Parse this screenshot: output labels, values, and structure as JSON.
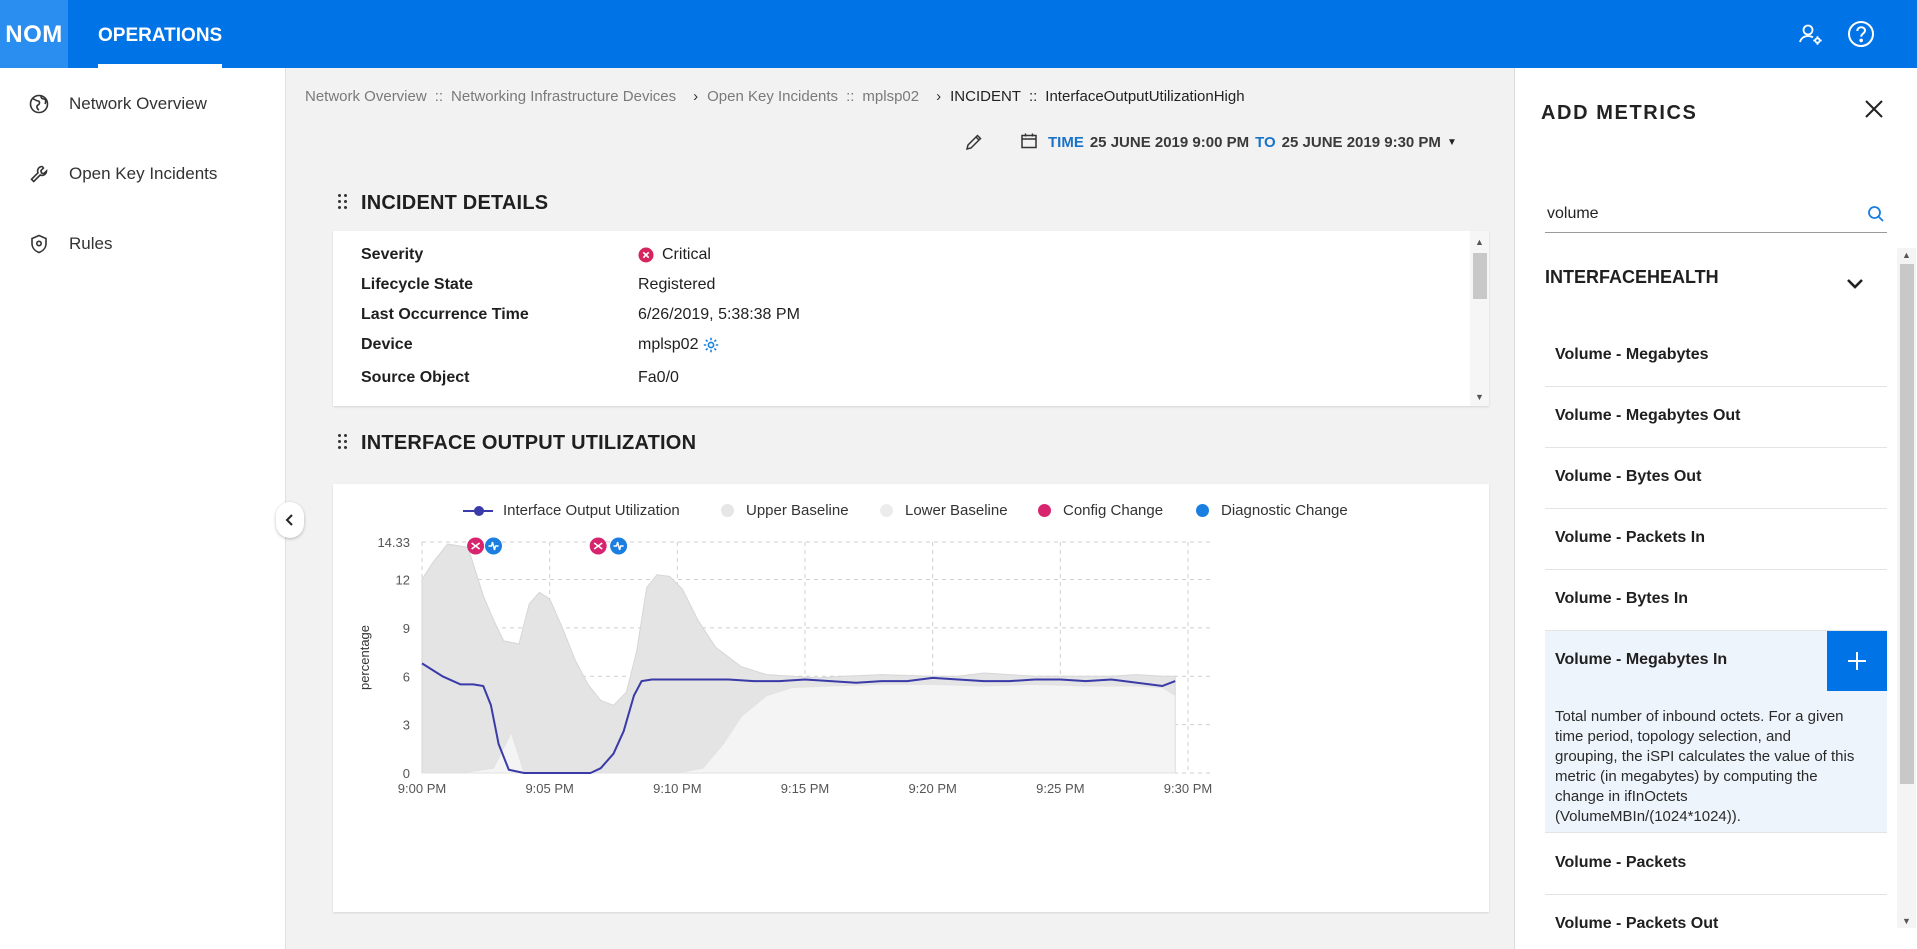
{
  "header": {
    "logo": "NOM",
    "tab": "OPERATIONS"
  },
  "sidebar": {
    "items": [
      {
        "label": "Network Overview",
        "icon": "globe-icon"
      },
      {
        "label": "Open Key Incidents",
        "icon": "wrench-icon"
      },
      {
        "label": "Rules",
        "icon": "shield-icon"
      }
    ]
  },
  "breadcrumb": {
    "items": [
      "Network Overview",
      "Networking Infrastructure Devices",
      "Open Key Incidents",
      "mplsp02"
    ],
    "separator": "::",
    "current_prefix": "INCIDENT",
    "current": "InterfaceOutputUtilizationHigh"
  },
  "timerange": {
    "time_label": "TIME",
    "from": "25 JUNE 2019 9:00 PM",
    "to_label": "TO",
    "to": "25 JUNE 2019 9:30 PM"
  },
  "incident_details": {
    "title": "INCIDENT DETAILS",
    "rows": [
      {
        "key": "Severity",
        "value": "Critical"
      },
      {
        "key": "Lifecycle State",
        "value": "Registered"
      },
      {
        "key": "Last Occurrence Time",
        "value": "6/26/2019, 5:38:38 PM"
      },
      {
        "key": "Device",
        "value": "mplsp02"
      },
      {
        "key": "Source Object",
        "value": "Fa0/0"
      }
    ],
    "severity_color": "#d6245e"
  },
  "chart_section": {
    "title": "INTERFACE OUTPUT UTILIZATION"
  },
  "chart_data": {
    "type": "line",
    "ylabel": "percentage",
    "xlabel": "",
    "ylim": [
      0,
      14.33
    ],
    "yticks": [
      "14.33",
      "12",
      "9",
      "6",
      "3",
      "0"
    ],
    "xticks": [
      "9:00 PM",
      "9:05 PM",
      "9:10 PM",
      "9:15 PM",
      "9:20 PM",
      "9:25 PM",
      "9:30 PM"
    ],
    "legend": [
      {
        "name": "Interface Output Utilization",
        "color": "#3a3aa8"
      },
      {
        "name": "Upper Baseline",
        "color": "#e6e6e6"
      },
      {
        "name": "Lower Baseline",
        "color": "#ececec"
      },
      {
        "name": "Config Change",
        "color": "#d6246e"
      },
      {
        "name": "Diagnostic Change",
        "color": "#1a7fe0"
      }
    ],
    "series": [
      {
        "name": "Interface Output Utilization",
        "x_minutes": [
          0,
          0.8,
          1.5,
          2.0,
          2.4,
          2.7,
          3.0,
          3.4,
          4.0,
          5.0,
          6.0,
          6.6,
          7.0,
          7.5,
          7.9,
          8.3,
          8.6,
          9.0,
          10,
          11,
          12,
          13,
          14,
          15,
          16,
          17,
          18,
          19,
          20,
          21,
          22,
          23,
          24,
          25,
          26,
          27,
          28,
          29,
          29.5
        ],
        "values": [
          6.8,
          6.0,
          5.5,
          5.5,
          5.4,
          4.2,
          1.8,
          0.2,
          0.0,
          0.0,
          0.0,
          0.0,
          0.3,
          1.2,
          2.6,
          4.8,
          5.7,
          5.8,
          5.8,
          5.8,
          5.8,
          5.7,
          5.7,
          5.8,
          5.7,
          5.6,
          5.7,
          5.7,
          5.9,
          5.8,
          5.7,
          5.7,
          5.8,
          5.8,
          5.7,
          5.8,
          5.6,
          5.4,
          5.7
        ]
      },
      {
        "name": "Upper Baseline",
        "x_minutes": [
          0,
          0.4,
          1.0,
          1.8,
          2.4,
          2.8,
          3.2,
          3.8,
          4.2,
          4.6,
          5.0,
          5.5,
          6.0,
          6.5,
          7.0,
          7.5,
          8.0,
          8.4,
          8.8,
          9.2,
          9.7,
          10.2,
          10.8,
          11.5,
          12.5,
          13.5,
          14.5,
          15.5,
          16.5,
          18,
          20,
          21,
          22,
          23,
          24,
          25,
          26,
          27,
          28,
          29,
          29.5
        ],
        "values": [
          12,
          13.0,
          14.2,
          14.0,
          11.0,
          9.5,
          8.2,
          8.0,
          10.5,
          11.2,
          10.8,
          9.0,
          7.0,
          5.5,
          4.5,
          4.2,
          5.0,
          7.5,
          11.5,
          12.3,
          12.2,
          11.4,
          9.5,
          7.8,
          6.6,
          6.1,
          6.0,
          5.9,
          6.0,
          6.1,
          6.0,
          6.0,
          6.2,
          6.1,
          6.0,
          6.0,
          6.0,
          6.0,
          6.1,
          6.0,
          6.0
        ]
      },
      {
        "name": "Lower Baseline",
        "x_minutes": [
          0,
          1.5,
          2.8,
          3.5,
          4.0,
          5.0,
          6.0,
          7.0,
          8.0,
          9.0,
          10.0,
          11.0,
          11.8,
          12.5,
          13.5,
          14.5,
          16,
          18,
          20,
          22,
          24,
          26,
          28,
          29,
          29.5
        ],
        "values": [
          0,
          0,
          0.3,
          2.5,
          0.0,
          0.0,
          0.0,
          0.0,
          0.0,
          0.0,
          0.0,
          0.3,
          1.8,
          3.5,
          4.8,
          5.3,
          5.4,
          5.5,
          5.5,
          5.4,
          5.5,
          5.4,
          5.4,
          5.3,
          4.8
        ]
      }
    ],
    "markers": [
      {
        "type": "Config Change",
        "x_minutes": 2.1
      },
      {
        "type": "Diagnostic Change",
        "x_minutes": 2.8
      },
      {
        "type": "Config Change",
        "x_minutes": 6.9
      },
      {
        "type": "Diagnostic Change",
        "x_minutes": 7.7
      }
    ],
    "grid": true
  },
  "add_metrics": {
    "title": "ADD METRICS",
    "search_value": "volume",
    "group": "INTERFACEHEALTH",
    "items": [
      {
        "label": "Volume - Megabytes"
      },
      {
        "label": "Volume - Megabytes Out"
      },
      {
        "label": "Volume - Bytes Out"
      },
      {
        "label": "Volume - Packets In"
      },
      {
        "label": "Volume - Bytes In"
      },
      {
        "label": "Volume - Megabytes In",
        "selected": true,
        "description": "Total number of inbound octets. For a given time period, topology selection, and grouping, the iSPI calculates the value of this metric (in megabytes) by computing the change in ifInOctets (VolumeMBIn/(1024*1024))."
      },
      {
        "label": "Volume - Packets"
      },
      {
        "label": "Volume - Packets Out"
      }
    ]
  }
}
